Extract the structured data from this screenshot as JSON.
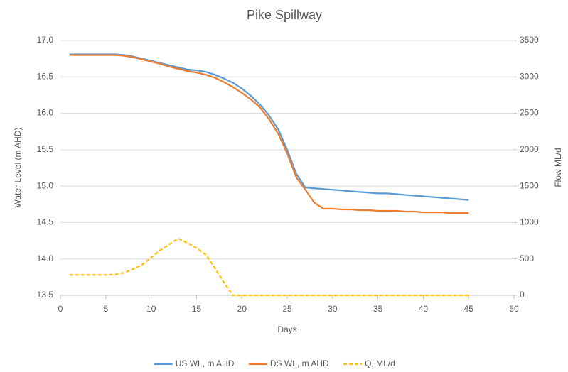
{
  "chart_data": {
    "type": "line",
    "title": "Pike Spillway",
    "x_label": "Days",
    "y_label": "Water Level (m AHD)",
    "y2_label": "Flow ML/d",
    "x": [
      1,
      2,
      3,
      4,
      5,
      6,
      7,
      8,
      9,
      10,
      11,
      12,
      13,
      14,
      15,
      16,
      17,
      18,
      19,
      20,
      21,
      22,
      23,
      24,
      25,
      26,
      27,
      28,
      29,
      30,
      31,
      32,
      33,
      34,
      35,
      36,
      37,
      38,
      39,
      40,
      41,
      42,
      43,
      44,
      45
    ],
    "series": [
      {
        "name": "US WL, m AHD",
        "color": "#5b9bd5",
        "line_style": "solid",
        "axis": "y",
        "values": [
          16.81,
          16.81,
          16.81,
          16.81,
          16.81,
          16.81,
          16.8,
          16.78,
          16.75,
          16.72,
          16.69,
          16.66,
          16.63,
          16.6,
          16.59,
          16.57,
          16.53,
          16.48,
          16.42,
          16.34,
          16.24,
          16.12,
          15.97,
          15.78,
          15.5,
          15.17,
          14.98,
          14.97,
          14.96,
          14.95,
          14.94,
          14.93,
          14.92,
          14.91,
          14.9,
          14.9,
          14.89,
          14.88,
          14.87,
          14.86,
          14.85,
          14.84,
          14.83,
          14.82,
          14.81
        ]
      },
      {
        "name": "DS WL, m AHD",
        "color": "#ed7d31",
        "line_style": "solid",
        "axis": "y",
        "values": [
          16.8,
          16.8,
          16.8,
          16.8,
          16.8,
          16.8,
          16.79,
          16.77,
          16.74,
          16.71,
          16.68,
          16.64,
          16.61,
          16.58,
          16.56,
          16.53,
          16.49,
          16.43,
          16.36,
          16.28,
          16.19,
          16.08,
          15.92,
          15.72,
          15.45,
          15.12,
          14.95,
          14.77,
          14.69,
          14.69,
          14.68,
          14.68,
          14.67,
          14.67,
          14.66,
          14.66,
          14.66,
          14.65,
          14.65,
          14.64,
          14.64,
          14.64,
          14.63,
          14.63,
          14.63
        ]
      },
      {
        "name": "Q, ML/d",
        "color": "#ffc000",
        "line_style": "dashed",
        "axis": "y2",
        "values": [
          280,
          280,
          280,
          280,
          280,
          285,
          310,
          360,
          420,
          520,
          620,
          700,
          780,
          720,
          650,
          560,
          380,
          180,
          0,
          0,
          0,
          0,
          0,
          0,
          0,
          0,
          0,
          0,
          0,
          0,
          0,
          0,
          0,
          0,
          0,
          0,
          0,
          0,
          0,
          0,
          0,
          0,
          0,
          0,
          0
        ]
      }
    ],
    "xlim": [
      0,
      50
    ],
    "xticks": [
      0,
      5,
      10,
      15,
      20,
      25,
      30,
      35,
      40,
      45,
      50
    ],
    "ylim": [
      13.5,
      17.0
    ],
    "yticks": [
      13.5,
      {
        "value": 14.0,
        "label": "14.0"
      },
      14.5,
      {
        "value": 15.0,
        "label": "15.0"
      },
      15.5,
      {
        "value": 16.0,
        "label": "16.0"
      },
      16.5,
      {
        "value": 17.0,
        "label": "17.0"
      }
    ],
    "y2lim": [
      0,
      3500
    ],
    "y2ticks": [
      0,
      500,
      1000,
      1500,
      2000,
      2500,
      3000,
      3500
    ],
    "grid": true,
    "legend": "bottom"
  }
}
